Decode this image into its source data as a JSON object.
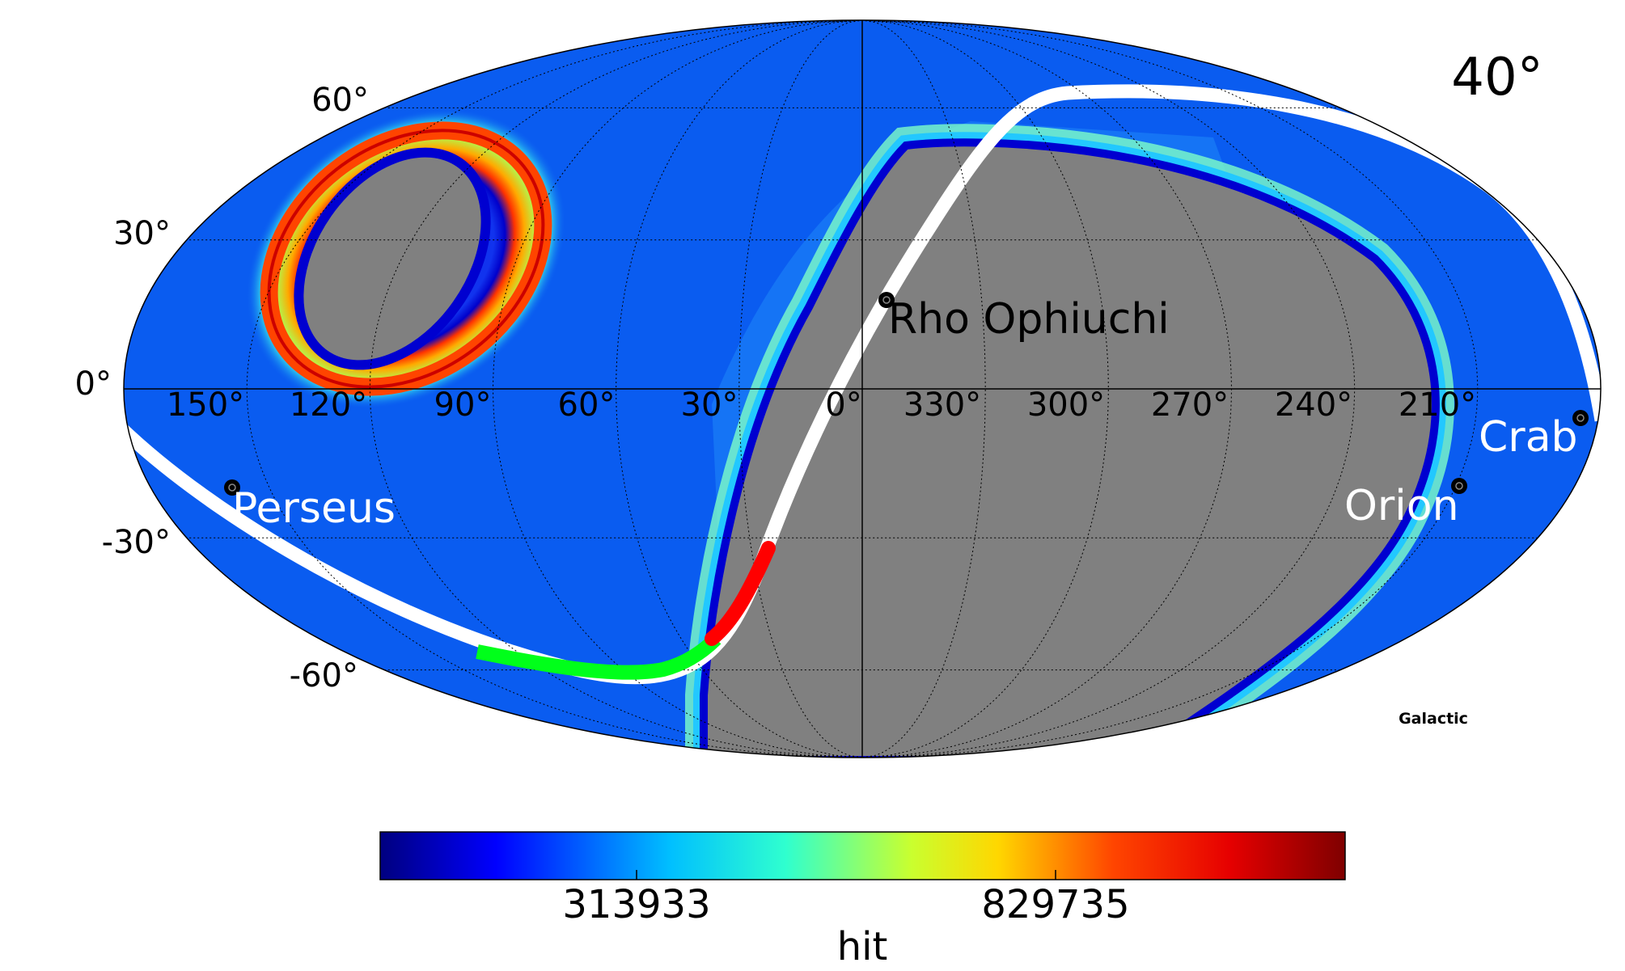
{
  "title": "40°",
  "coord_system": "Galactic",
  "latitude_labels": [
    "60°",
    "30°",
    "0°",
    "-30°",
    "-60°"
  ],
  "longitude_labels": [
    "150°",
    "120°",
    "90°",
    "60°",
    "30°",
    "0°",
    "330°",
    "300°",
    "270°",
    "240°",
    "210°"
  ],
  "sources": [
    {
      "name": "Rho Ophiuchi",
      "label_color": "#000000"
    },
    {
      "name": "Perseus",
      "label_color": "#ffffff"
    },
    {
      "name": "Orion",
      "label_color": "#ffffff"
    },
    {
      "name": "Crab",
      "label_color": "#ffffff"
    }
  ],
  "colorbar": {
    "label": "hit",
    "ticks": [
      "313933",
      "829735"
    ],
    "colormap": "jet",
    "stops": [
      "#00007f",
      "#0000ff",
      "#00bfff",
      "#2fffcf",
      "#c9ff2f",
      "#ffd700",
      "#ff4500",
      "#e60000",
      "#7f0000"
    ]
  },
  "colors": {
    "unobserved": "#808080",
    "sky_base": "#0a5cf0",
    "track_green": "#00ff1a",
    "track_red": "#ff0000",
    "galactic_band": "#ffffff"
  }
}
